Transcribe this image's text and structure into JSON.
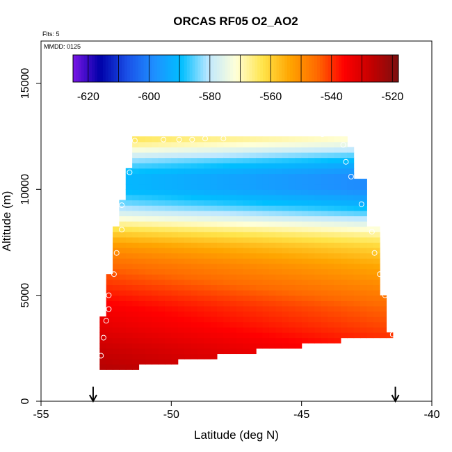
{
  "chart_data": {
    "type": "heatmap",
    "title": "ORCAS RF05 O2_AO2",
    "flights_label": "Flts: 5",
    "date_label": "MMDD: 0125",
    "xlabel": "Latitude (deg N)",
    "ylabel": "Altitude (m)",
    "xlim": [
      -55,
      -40
    ],
    "ylim": [
      0,
      17000
    ],
    "x_ticks": [
      -55,
      -50,
      -45,
      -40
    ],
    "x_tick_labels": [
      "-55",
      "-50",
      "-45",
      "-40"
    ],
    "y_ticks": [
      0,
      5000,
      10000,
      15000
    ],
    "y_tick_labels": [
      "0",
      "5000",
      "10000",
      "15000"
    ],
    "colorbar": {
      "range": [
        -625,
        -518
      ],
      "ticks": [
        -620,
        -600,
        -580,
        -560,
        -540,
        -520
      ],
      "tick_labels": [
        "-620",
        "-600",
        "-580",
        "-560",
        "-540",
        "-520"
      ],
      "placement": "top-inside",
      "colors": [
        "#7a16e6",
        "#0000a8",
        "#1a50e8",
        "#1e90ff",
        "#00bfff",
        "#bfe8ff",
        "#ffffd8",
        "#ffe44a",
        "#ffa500",
        "#ff6a00",
        "#ff0000",
        "#c40000",
        "#7a1010"
      ]
    },
    "arrows_at_latitude": [
      -53,
      -41.4
    ],
    "outline_profile": [
      {
        "lat": -52.9,
        "alt_bottom": 1300
      },
      {
        "lat": -52.7,
        "alt_bottom": 1550
      },
      {
        "lat": -51.3,
        "alt_bottom": 1800
      },
      {
        "lat": -49.8,
        "alt_bottom": 2000
      },
      {
        "lat": -48.2,
        "alt_bottom": 2300
      },
      {
        "lat": -46.7,
        "alt_bottom": 2600
      },
      {
        "lat": -45.1,
        "alt_bottom": 2800
      },
      {
        "lat": -43.6,
        "alt_bottom": 3000
      }
    ],
    "left_edge": [
      [
        -52.8,
        1500
      ],
      [
        -52.8,
        4000
      ],
      [
        -52.5,
        4000
      ],
      [
        -52.5,
        6000
      ],
      [
        -52.3,
        6000
      ],
      [
        -52.3,
        8200
      ],
      [
        -52.1,
        8200
      ],
      [
        -52.1,
        9500
      ],
      [
        -51.8,
        9500
      ],
      [
        -51.8,
        11000
      ],
      [
        -51.5,
        11000
      ],
      [
        -51.5,
        12500
      ]
    ],
    "right_edge": [
      [
        -43.2,
        12500
      ],
      [
        -43.2,
        12000
      ],
      [
        -43.0,
        12000
      ],
      [
        -43.0,
        10500
      ],
      [
        -42.6,
        10500
      ],
      [
        -42.6,
        9300
      ],
      [
        -42.4,
        9300
      ],
      [
        -42.4,
        8200
      ],
      [
        -42.1,
        8200
      ],
      [
        -42.1,
        7000
      ],
      [
        -41.9,
        7000
      ],
      [
        -41.9,
        5000
      ],
      [
        -41.7,
        5000
      ],
      [
        -41.7,
        3200
      ],
      [
        -41.4,
        3200
      ]
    ],
    "altitude_profile": [
      {
        "alt": 1500,
        "value": -530
      },
      {
        "alt": 2500,
        "value": -533
      },
      {
        "alt": 3500,
        "value": -537
      },
      {
        "alt": 4500,
        "value": -540
      },
      {
        "alt": 5500,
        "value": -545
      },
      {
        "alt": 6500,
        "value": -550
      },
      {
        "alt": 7300,
        "value": -556
      },
      {
        "alt": 7800,
        "value": -562
      },
      {
        "alt": 8300,
        "value": -570
      },
      {
        "alt": 8800,
        "value": -580
      },
      {
        "alt": 9300,
        "value": -588
      },
      {
        "alt": 10000,
        "value": -595
      },
      {
        "alt": 10700,
        "value": -595
      },
      {
        "alt": 11300,
        "value": -588
      },
      {
        "alt": 11800,
        "value": -578
      },
      {
        "alt": 12300,
        "value": -568
      }
    ],
    "latitude_gradient": -0.9,
    "sample_points": [
      [
        -52.8,
        1350
      ],
      [
        -52.7,
        2150
      ],
      [
        -52.6,
        3000
      ],
      [
        -52.5,
        3800
      ],
      [
        -52.4,
        4350
      ],
      [
        -52.4,
        5000
      ],
      [
        -52.2,
        6000
      ],
      [
        -52.1,
        7000
      ],
      [
        -51.9,
        8100
      ],
      [
        -51.9,
        9250
      ],
      [
        -51.6,
        10800
      ],
      [
        -51.4,
        12300
      ],
      [
        -50.3,
        12350
      ],
      [
        -49.7,
        12350
      ],
      [
        -49.2,
        12350
      ],
      [
        -48.7,
        12400
      ],
      [
        -48.0,
        12400
      ],
      [
        -44.2,
        12600
      ],
      [
        -43.4,
        12100
      ],
      [
        -43.3,
        11300
      ],
      [
        -43.1,
        10600
      ],
      [
        -42.7,
        9300
      ],
      [
        -42.3,
        8000
      ],
      [
        -42.2,
        7000
      ],
      [
        -42.0,
        6000
      ],
      [
        -41.8,
        5000
      ],
      [
        -41.6,
        4000
      ],
      [
        -41.5,
        3150
      ]
    ]
  }
}
